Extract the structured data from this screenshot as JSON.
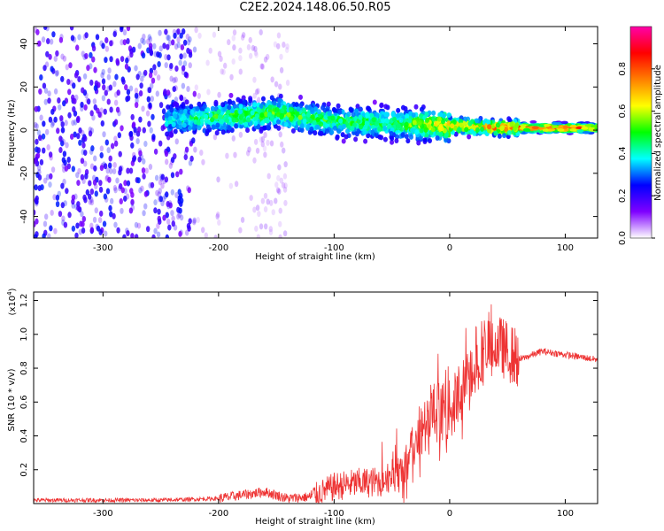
{
  "title": "C2E2.2024.148.06.50.R05",
  "chart_data": [
    {
      "type": "heatmap",
      "xlabel": "Height of straight line (km)",
      "ylabel": "Frequency (Hz)",
      "xlim": [
        -360,
        128
      ],
      "ylim": [
        -50,
        48
      ],
      "x_ticks": [
        -300,
        -200,
        -100,
        0,
        100
      ],
      "y_ticks": [
        -40,
        -20,
        0,
        20,
        40
      ],
      "colorbar": {
        "label": "Normalized spectral amplitude",
        "range": [
          0,
          1
        ],
        "ticks": [
          "0.0",
          "0.2",
          "0.4",
          "0.6",
          "0.8"
        ],
        "colormap": [
          "#ffffff",
          "#7f00ff",
          "#0000ff",
          "#00ffff",
          "#00ff00",
          "#ffff00",
          "#ff7f00",
          "#ff0000",
          "#ff00aa"
        ]
      },
      "ridge": [
        {
          "x": -240,
          "center_hz": 5,
          "peak_amp": 0.35
        },
        {
          "x": -200,
          "center_hz": 6,
          "peak_amp": 0.45
        },
        {
          "x": -150,
          "center_hz": 8,
          "peak_amp": 0.5
        },
        {
          "x": -100,
          "center_hz": 4,
          "peak_amp": 0.45
        },
        {
          "x": -50,
          "center_hz": 3,
          "peak_amp": 0.45
        },
        {
          "x": 0,
          "center_hz": 2,
          "peak_amp": 0.7
        },
        {
          "x": 50,
          "center_hz": 1,
          "peak_amp": 0.75
        },
        {
          "x": 100,
          "center_hz": 1,
          "peak_amp": 0.9
        },
        {
          "x": 128,
          "center_hz": 1,
          "peak_amp": 0.7
        }
      ]
    },
    {
      "type": "line",
      "xlabel": "Height of straight line (km)",
      "ylabel": "SNR (10 * v/v)",
      "yscale_note": "(x10",
      "yscale_exp": "4",
      "xlim": [
        -360,
        128
      ],
      "ylim": [
        0,
        1.25
      ],
      "x_ticks": [
        -300,
        -200,
        -100,
        0,
        100
      ],
      "y_ticks": [
        0.2,
        0.4,
        0.6,
        0.8,
        1.0,
        1.2
      ],
      "series": [
        {
          "color": "#ee3333",
          "x": [
            -360,
            -300,
            -250,
            -200,
            -180,
            -160,
            -140,
            -120,
            -100,
            -80,
            -60,
            -40,
            -30,
            -20,
            -10,
            0,
            10,
            20,
            30,
            40,
            50,
            60,
            80,
            100,
            128
          ],
          "y": [
            0.02,
            0.02,
            0.02,
            0.03,
            0.05,
            0.07,
            0.03,
            0.04,
            0.1,
            0.12,
            0.13,
            0.2,
            0.35,
            0.45,
            0.55,
            0.55,
            0.65,
            0.8,
            0.88,
            0.95,
            0.9,
            0.85,
            0.9,
            0.88,
            0.85
          ]
        }
      ]
    }
  ]
}
